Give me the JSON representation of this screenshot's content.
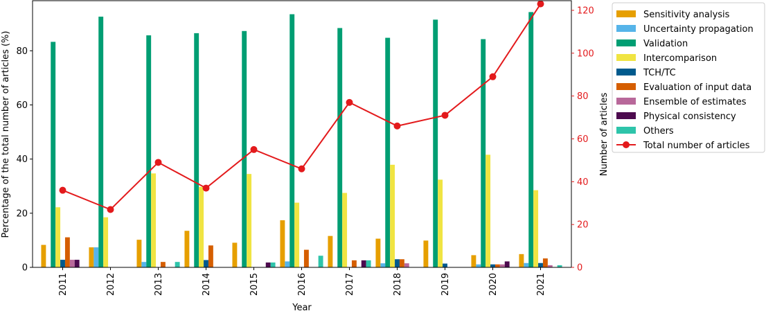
{
  "chart_data": {
    "type": "bar",
    "xlabel": "Year",
    "ylabel_left": "Percentage of the total number of articles (%)",
    "ylabel_right": "Number of articles",
    "ylim_left": [
      0,
      98.5
    ],
    "ylim_right": [
      0,
      124.5
    ],
    "yticks_left": [
      0,
      20,
      40,
      60,
      80
    ],
    "yticks_right": [
      0,
      20,
      40,
      60,
      80,
      100,
      120
    ],
    "right_axis_color": "#e31a1c",
    "grid": false,
    "legend_position": "outside-right",
    "categories": [
      "2011",
      "2012",
      "2013",
      "2014",
      "2015",
      "2016",
      "2017",
      "2018",
      "2019",
      "2020",
      "2021"
    ],
    "series": [
      {
        "name": "Sensitivity analysis",
        "color": "#e69f00",
        "values": [
          8.3,
          7.4,
          10.2,
          13.5,
          9.1,
          17.4,
          11.6,
          10.6,
          9.9,
          4.5,
          4.9
        ]
      },
      {
        "name": "Uncertainty propagation",
        "color": "#56b4e9",
        "values": [
          0,
          7.4,
          2.0,
          0,
          0,
          2.2,
          0,
          1.5,
          0,
          1.1,
          1.6
        ]
      },
      {
        "name": "Validation",
        "color": "#009e73",
        "values": [
          83.3,
          92.6,
          85.7,
          86.5,
          87.3,
          93.5,
          88.4,
          84.8,
          91.5,
          84.3,
          94.3
        ]
      },
      {
        "name": "Intercomparison",
        "color": "#f0e442",
        "values": [
          22.2,
          18.5,
          34.7,
          29.7,
          34.5,
          23.9,
          27.5,
          37.9,
          32.4,
          41.6,
          28.5
        ]
      },
      {
        "name": "TCH/TC",
        "color": "#005a8d",
        "values": [
          2.8,
          0,
          0,
          2.7,
          0,
          0,
          0,
          3.0,
          1.4,
          1.1,
          1.6
        ]
      },
      {
        "name": "Evaluation of input data",
        "color": "#d55e00",
        "values": [
          11.1,
          0,
          2.0,
          8.1,
          0,
          6.5,
          2.6,
          3.0,
          0,
          1.1,
          3.3
        ]
      },
      {
        "name": "Ensemble of estimates",
        "color": "#b8689a",
        "values": [
          2.8,
          0,
          0,
          0,
          0,
          0,
          0,
          1.5,
          0,
          1.1,
          0.8
        ]
      },
      {
        "name": "Physical consistency",
        "color": "#4c0a4e",
        "values": [
          2.8,
          0,
          0,
          0,
          1.8,
          0,
          2.6,
          0,
          0,
          2.2,
          0
        ]
      },
      {
        "name": "Others",
        "color": "#2ec4aa",
        "values": [
          0,
          0,
          2.0,
          0,
          1.8,
          4.3,
          2.6,
          0,
          0,
          0,
          0.8
        ]
      }
    ],
    "line": {
      "name": "Total number of articles",
      "color": "#e31a1c",
      "axis": "right",
      "values": [
        36,
        27,
        49,
        37,
        55,
        46,
        77,
        66,
        71,
        89,
        123
      ]
    }
  }
}
